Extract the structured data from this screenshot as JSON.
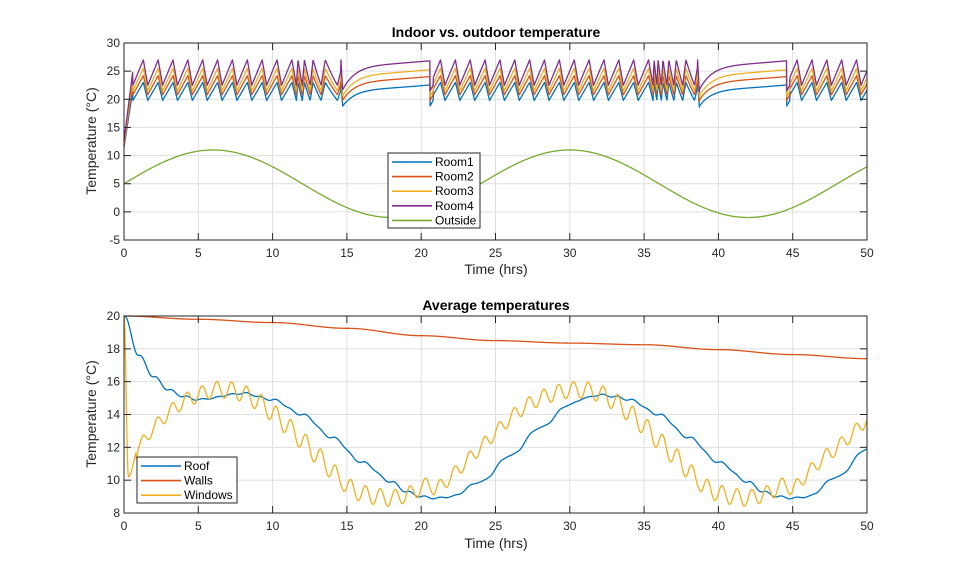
{
  "chart_data": [
    {
      "type": "line",
      "title": "Indoor vs. outdoor temperature",
      "xlabel": "Time (hrs)",
      "ylabel": "Temperature (°C)",
      "xlim": [
        0,
        50
      ],
      "ylim": [
        -5,
        30
      ],
      "xticks": [
        0,
        5,
        10,
        15,
        20,
        25,
        30,
        35,
        40,
        45,
        50
      ],
      "yticks": [
        -5,
        0,
        5,
        10,
        15,
        20,
        25,
        30
      ],
      "grid": true,
      "legend": {
        "location": "center-bottom",
        "entries": [
          "Room1",
          "Room2",
          "Room3",
          "Room4",
          "Outside"
        ]
      },
      "series": [
        {
          "name": "Room1",
          "color": "#0072BD",
          "low": 19.8,
          "high": 23.0,
          "plateau": 22.3,
          "start": 11.5
        },
        {
          "name": "Room2",
          "color": "#D95319",
          "low": 20.8,
          "high": 24.2,
          "plateau": 23.8,
          "start": 11.8
        },
        {
          "name": "Room3",
          "color": "#EDB120",
          "low": 21.5,
          "high": 25.5,
          "plateau": 25.0,
          "start": 12.2
        },
        {
          "name": "Room4",
          "color": "#7E2F8E",
          "low": 22.5,
          "high": 27.0,
          "plateau": 26.6,
          "start": 12.6
        },
        {
          "name": "Outside",
          "color": "#77AC30",
          "mean": 5.0,
          "amplitude": 6.0,
          "period_hrs": 24,
          "peak_hrs": 6,
          "start": 5.0
        }
      ],
      "heater_off_intervals_hrs": [
        [
          14.6,
          20.6
        ],
        [
          38.6,
          44.6
        ]
      ],
      "cycling_period_hrs": 1.0
    },
    {
      "type": "line",
      "title": "Average temperatures",
      "xlabel": "Time (hrs)",
      "ylabel": "Temperature (°C)",
      "xlim": [
        0,
        50
      ],
      "ylim": [
        8,
        20
      ],
      "xticks": [
        0,
        5,
        10,
        15,
        20,
        25,
        30,
        35,
        40,
        45,
        50
      ],
      "yticks": [
        8,
        10,
        12,
        14,
        16,
        18,
        20
      ],
      "grid": true,
      "legend": {
        "location": "bottom-left",
        "entries": [
          "Roof",
          "Walls",
          "Windows"
        ]
      },
      "series": [
        {
          "name": "Roof",
          "color": "#0072BD",
          "x": [
            0,
            1,
            2,
            3,
            4,
            5,
            6,
            7,
            8,
            10,
            12,
            14,
            16,
            18,
            19,
            20,
            21,
            22,
            24,
            26,
            28,
            30,
            31,
            32,
            33,
            34,
            36,
            38,
            40,
            42,
            43,
            44,
            45,
            46,
            48,
            50
          ],
          "y": [
            20.0,
            17.6,
            16.3,
            15.5,
            15.1,
            14.9,
            15.0,
            15.2,
            15.3,
            14.9,
            14.0,
            12.6,
            11.1,
            9.9,
            9.3,
            9.0,
            8.9,
            9.0,
            9.9,
            11.5,
            13.2,
            14.6,
            15.0,
            15.2,
            15.1,
            14.9,
            14.0,
            12.6,
            11.1,
            9.9,
            9.3,
            9.0,
            8.9,
            9.0,
            10.2,
            11.9
          ]
        },
        {
          "name": "Walls",
          "color": "#D95319",
          "x": [
            0,
            5,
            10,
            15,
            20,
            25,
            30,
            35,
            40,
            45,
            50
          ],
          "y": [
            20.0,
            19.8,
            19.6,
            19.25,
            18.8,
            18.5,
            18.35,
            18.25,
            17.95,
            17.65,
            17.4
          ]
        },
        {
          "name": "Windows",
          "color": "#EDB120",
          "x": [
            0,
            0.3,
            1,
            2,
            3,
            4,
            5,
            6,
            7,
            8,
            9,
            10,
            11,
            12,
            13,
            14,
            14.6,
            15,
            16,
            17,
            18,
            19,
            20,
            20.6,
            21,
            22,
            23,
            24,
            25,
            26,
            27,
            28,
            29,
            30,
            31,
            32,
            33,
            34,
            35,
            36,
            37,
            38,
            38.6,
            39,
            40,
            41,
            42,
            43,
            44,
            44.6,
            45,
            46,
            47,
            48,
            49,
            50
          ],
          "y": [
            20.0,
            10.2,
            12.0,
            13.2,
            14.1,
            14.8,
            15.2,
            15.5,
            15.5,
            15.3,
            14.8,
            14.1,
            13.3,
            12.4,
            11.5,
            10.6,
            10.0,
            9.6,
            9.2,
            9.0,
            8.9,
            9.1,
            9.5,
            9.8,
            9.4,
            10.2,
            11.1,
            12.0,
            12.9,
            13.8,
            14.5,
            15.0,
            15.3,
            15.5,
            15.5,
            15.3,
            14.8,
            14.1,
            13.3,
            12.4,
            11.5,
            10.6,
            10.0,
            9.6,
            9.2,
            9.0,
            8.9,
            9.1,
            9.5,
            9.8,
            9.4,
            10.4,
            11.3,
            12.0,
            12.8,
            13.7
          ]
        }
      ],
      "windows_ripple_amplitude": 0.5,
      "cycling_period_hrs": 1.0
    }
  ]
}
